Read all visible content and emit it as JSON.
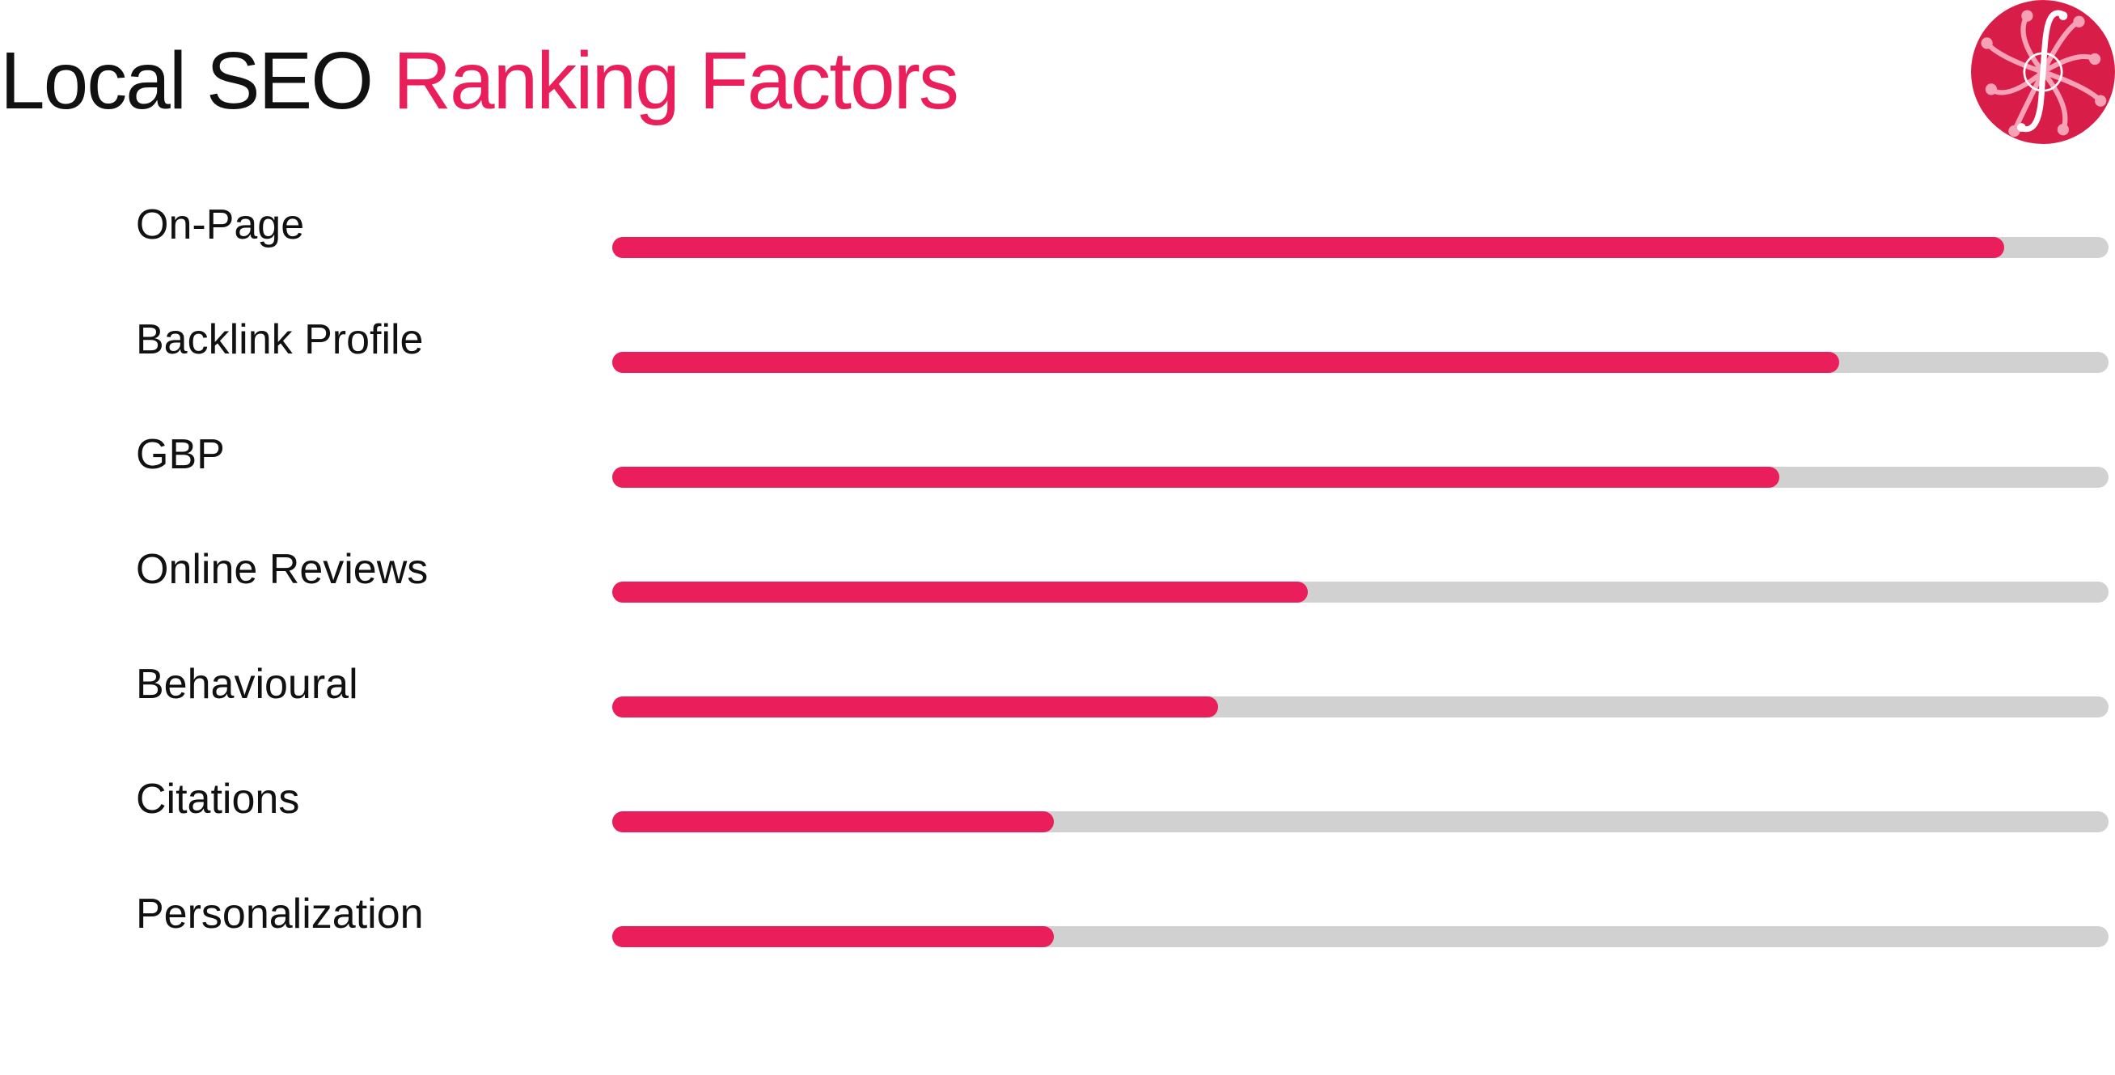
{
  "header": {
    "title_part1": "Local SEO",
    "title_part2": "Ranking Factors"
  },
  "logo": {
    "icon": "integral-swirl-logo-icon",
    "color": "#d81e48"
  },
  "colors": {
    "accent": "#e91e5a",
    "track": "#d1d1d1",
    "text": "#111111"
  },
  "chart_data": {
    "type": "bar",
    "orientation": "horizontal",
    "categories": [
      "On-Page",
      "Backlink Profile",
      "GBP",
      "Online Reviews",
      "Behavioural",
      "Citations",
      "Personalization"
    ],
    "values": [
      0.93,
      0.82,
      0.78,
      0.465,
      0.405,
      0.295,
      0.295
    ],
    "xlim": [
      0,
      1
    ],
    "grid": false,
    "legend": "none"
  }
}
